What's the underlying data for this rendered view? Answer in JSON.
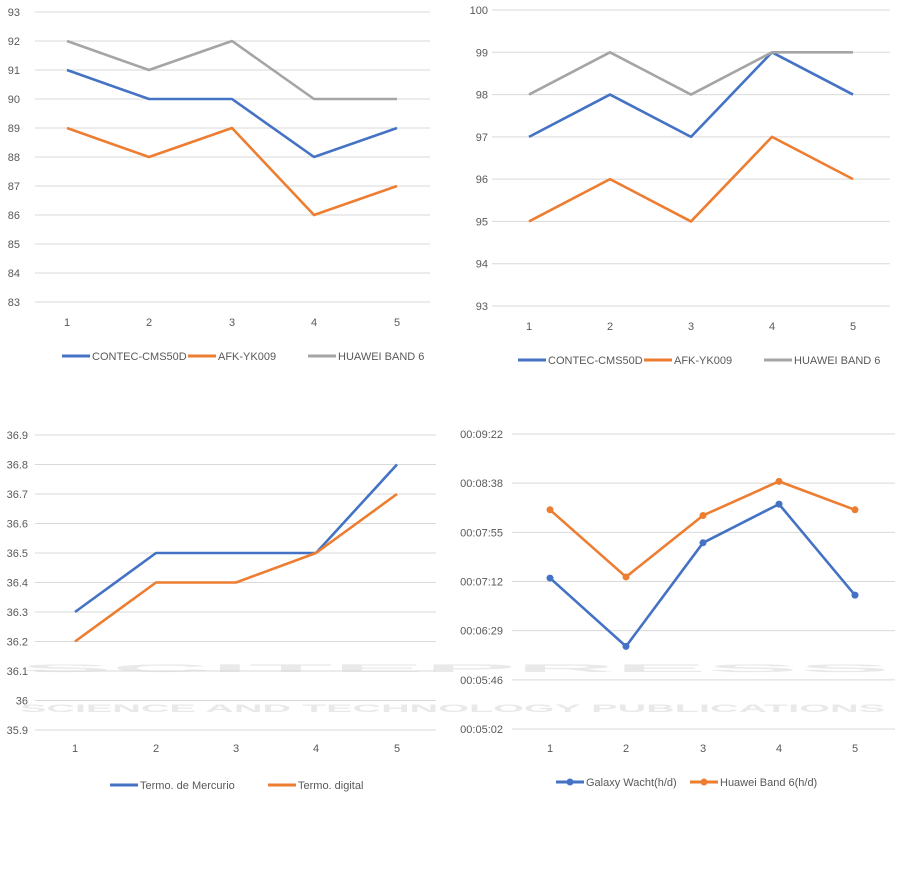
{
  "watermark": {
    "brand": "SCITEPRESS",
    "tagline": "SCIENCE AND TECHNOLOGY PUBLICATIONS"
  },
  "colors": {
    "blue": "#4472c4",
    "orange": "#ed7d31",
    "gray": "#a5a5a5",
    "grid": "#d9d9d9"
  },
  "chart_data": [
    {
      "type": "line",
      "categories": [
        "1",
        "2",
        "3",
        "4",
        "5"
      ],
      "ylim": [
        83,
        93
      ],
      "yticks": [
        83,
        84,
        85,
        86,
        87,
        88,
        89,
        90,
        91,
        92,
        93
      ],
      "ytick_labels": [
        "83",
        "84",
        "85",
        "86",
        "87",
        "88",
        "89",
        "90",
        "91",
        "92",
        "93"
      ],
      "grid": true,
      "legend": "bottom",
      "markers": false,
      "series": [
        {
          "name": "CONTEC-CMS50D",
          "color": "#4472c4",
          "values": [
            91,
            90,
            90,
            88,
            89
          ]
        },
        {
          "name": "AFK-YK009",
          "color": "#ed7d31",
          "values": [
            89,
            88,
            89,
            86,
            87
          ]
        },
        {
          "name": "HUAWEI BAND 6",
          "color": "#a5a5a5",
          "values": [
            92,
            91,
            92,
            90,
            90
          ]
        }
      ]
    },
    {
      "type": "line",
      "categories": [
        "1",
        "2",
        "3",
        "4",
        "5"
      ],
      "ylim": [
        93,
        100
      ],
      "yticks": [
        93,
        94,
        95,
        96,
        97,
        98,
        99,
        100
      ],
      "ytick_labels": [
        "93",
        "94",
        "95",
        "96",
        "97",
        "98",
        "99",
        "100"
      ],
      "grid": true,
      "legend": "bottom",
      "markers": false,
      "series": [
        {
          "name": "CONTEC-CMS50D",
          "color": "#4472c4",
          "values": [
            97,
            98,
            97,
            99,
            98
          ]
        },
        {
          "name": "AFK-YK009",
          "color": "#ed7d31",
          "values": [
            95,
            96,
            95,
            97,
            96
          ]
        },
        {
          "name": "HUAWEI BAND 6",
          "color": "#a5a5a5",
          "values": [
            98,
            99,
            98,
            99,
            99
          ]
        }
      ]
    },
    {
      "type": "line",
      "categories": [
        "1",
        "2",
        "3",
        "4",
        "5"
      ],
      "ylim": [
        35.9,
        36.9
      ],
      "yticks": [
        35.9,
        36,
        36.1,
        36.2,
        36.3,
        36.4,
        36.5,
        36.6,
        36.7,
        36.8,
        36.9
      ],
      "ytick_labels": [
        "35.9",
        "36",
        "36.1",
        "36.2",
        "36.3",
        "36.4",
        "36.5",
        "36.6",
        "36.7",
        "36.8",
        "36.9"
      ],
      "grid": true,
      "legend": "bottom",
      "markers": false,
      "series": [
        {
          "name": "Termo. de Mercurio",
          "color": "#4472c4",
          "values": [
            36.3,
            36.5,
            36.5,
            36.5,
            36.8
          ]
        },
        {
          "name": "Termo. digital",
          "color": "#ed7d31",
          "values": [
            36.2,
            36.4,
            36.4,
            36.5,
            36.7
          ]
        }
      ]
    },
    {
      "type": "line",
      "categories": [
        "1",
        "2",
        "3",
        "4",
        "5"
      ],
      "ylabel_units": "seconds",
      "ylim": [
        302.4,
        561.6
      ],
      "yticks": [
        302.4,
        345.6,
        388.8,
        432,
        475.2,
        518.4,
        561.6
      ],
      "ytick_labels": [
        "00:05:02",
        "00:05:46",
        "00:06:29",
        "00:07:12",
        "00:07:55",
        "00:08:38",
        "00:09:22"
      ],
      "grid": true,
      "legend": "bottom",
      "markers": true,
      "series": [
        {
          "name": "Galaxy Wacht(h/d)",
          "color": "#4472c4",
          "values": [
            435,
            375,
            466,
            500,
            420
          ]
        },
        {
          "name": "Huawei Band 6(h/d)",
          "color": "#ed7d31",
          "values": [
            495,
            436,
            490,
            520,
            495
          ]
        }
      ]
    }
  ]
}
